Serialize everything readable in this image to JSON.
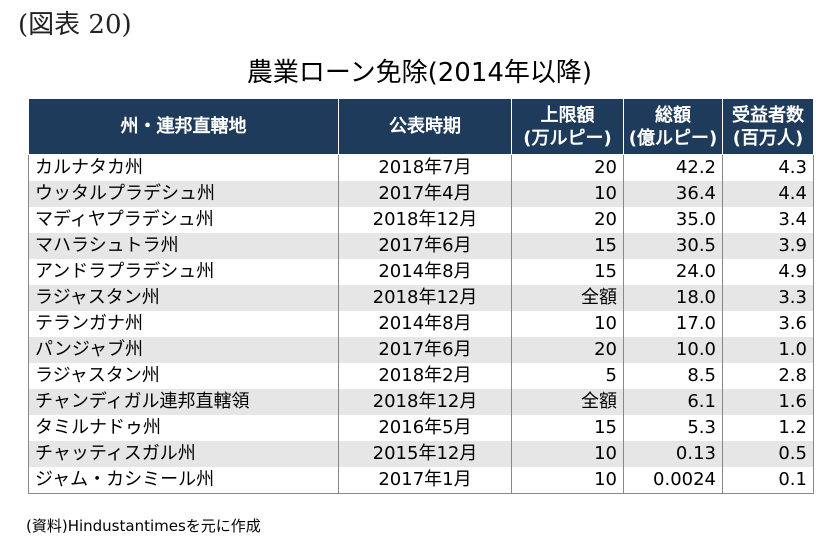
{
  "figure_label": "(図表 20)",
  "title": "農業ローン免除(2014年以降)",
  "table": {
    "headers": [
      {
        "line1": "州・連邦直轄地",
        "line2": ""
      },
      {
        "line1": "公表時期",
        "line2": ""
      },
      {
        "line1": "上限額",
        "line2": "(万ルピー)"
      },
      {
        "line1": "総額",
        "line2": "(億ルピー)"
      },
      {
        "line1": "受益者数",
        "line2": "(百万人)"
      }
    ],
    "rows": [
      {
        "state": "カルナタカ州",
        "date": "2018年7月",
        "limit": "20",
        "total": "42.2",
        "beneficiaries": "4.3"
      },
      {
        "state": "ウッタルプラデシュ州",
        "date": "2017年4月",
        "limit": "10",
        "total": "36.4",
        "beneficiaries": "4.4"
      },
      {
        "state": "マディヤプラデシュ州",
        "date": "2018年12月",
        "limit": "20",
        "total": "35.0",
        "beneficiaries": "3.4"
      },
      {
        "state": "マハラシュトラ州",
        "date": "2017年6月",
        "limit": "15",
        "total": "30.5",
        "beneficiaries": "3.9"
      },
      {
        "state": "アンドラプラデシュ州",
        "date": "2014年8月",
        "limit": "15",
        "total": "24.0",
        "beneficiaries": "4.9"
      },
      {
        "state": "ラジャスタン州",
        "date": "2018年12月",
        "limit": "全額",
        "total": "18.0",
        "beneficiaries": "3.3"
      },
      {
        "state": "テランガナ州",
        "date": "2014年8月",
        "limit": "10",
        "total": "17.0",
        "beneficiaries": "3.6"
      },
      {
        "state": "パンジャブ州",
        "date": "2017年6月",
        "limit": "20",
        "total": "10.0",
        "beneficiaries": "1.0"
      },
      {
        "state": "ラジャスタン州",
        "date": "2018年2月",
        "limit": "5",
        "total": "8.5",
        "beneficiaries": "2.8"
      },
      {
        "state": "チャンディガル連邦直轄領",
        "date": "2018年12月",
        "limit": "全額",
        "total": "6.1",
        "beneficiaries": "1.6"
      },
      {
        "state": "タミルナドゥ州",
        "date": "2016年5月",
        "limit": "15",
        "total": "5.3",
        "beneficiaries": "1.2"
      },
      {
        "state": "チャッティスガル州",
        "date": "2015年12月",
        "limit": "10",
        "total": "0.13",
        "beneficiaries": "0.5"
      },
      {
        "state": "ジャム・カシミール州",
        "date": "2017年1月",
        "limit": "10",
        "total": "0.0024",
        "beneficiaries": "0.1"
      }
    ]
  },
  "source": "(資料)Hindustantimesを元に作成",
  "colors": {
    "header_bg": "#1f3b5b",
    "header_text": "#ffffff",
    "row_shade": "#e6e6e6"
  }
}
